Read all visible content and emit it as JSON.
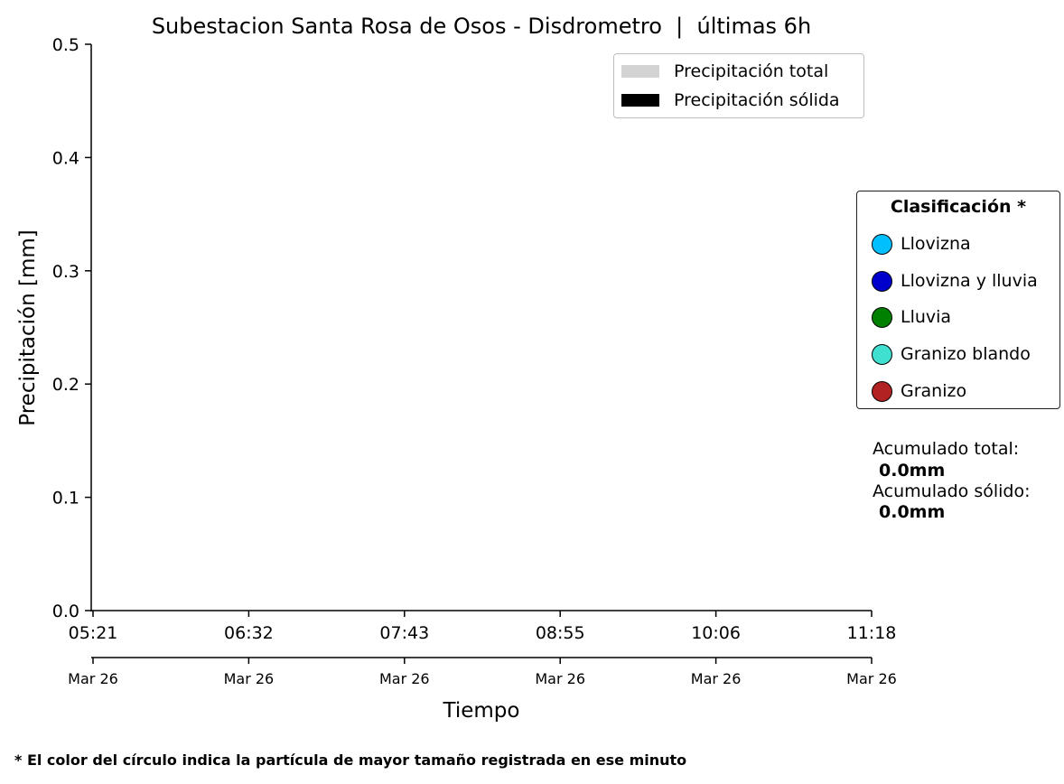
{
  "chart_data": {
    "type": "bar",
    "title": "Subestacion Santa Rosa de Osos - Disdrometro  |  últimas 6h",
    "xlabel": "Tiempo",
    "ylabel": "Precipitación [mm]",
    "ylim": [
      0,
      0.5
    ],
    "y_ticks": [
      "0.0",
      "0.1",
      "0.2",
      "0.3",
      "0.4",
      "0.5"
    ],
    "x_range": [
      "05:21",
      "11:18"
    ],
    "x_ticks": [
      {
        "time": "05:21",
        "date": "Mar 26"
      },
      {
        "time": "06:32",
        "date": "Mar 26"
      },
      {
        "time": "07:43",
        "date": "Mar 26"
      },
      {
        "time": "08:55",
        "date": "Mar 26"
      },
      {
        "time": "10:06",
        "date": "Mar 26"
      },
      {
        "time": "11:18",
        "date": "Mar 26"
      }
    ],
    "grid": false,
    "series": [
      {
        "name": "Precipitación total",
        "color": "#d3d3d3",
        "values": []
      },
      {
        "name": "Precipitación sólida",
        "color": "#000000",
        "values": []
      }
    ],
    "legend_placement": "top-right",
    "classification": {
      "title": "Clasificación *",
      "items": [
        {
          "label": "Llovizna",
          "color": "#00bfff"
        },
        {
          "label": "Llovizna y lluvia",
          "color": "#0000cd"
        },
        {
          "label": "Lluvia",
          "color": "#008000"
        },
        {
          "label": "Granizo blando",
          "color": "#40e0d0"
        },
        {
          "label": "Granizo",
          "color": "#b22222"
        }
      ]
    },
    "accumulated": {
      "total_label": "Acumulado total:",
      "total_value": " 0.0mm",
      "solid_label": "Acumulado sólido:",
      "solid_value": " 0.0mm"
    },
    "footnote": "* El color del círculo indica la partícula de mayor tamaño registrada en ese minuto"
  }
}
